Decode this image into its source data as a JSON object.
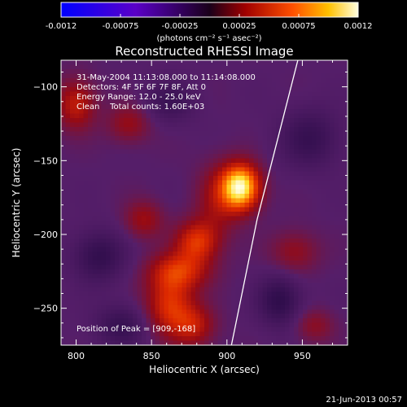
{
  "chart_data": {
    "type": "heatmap",
    "title": "Reconstructed RHESSI Image",
    "xlabel": "Heliocentric X (arcsec)",
    "ylabel": "Heliocentric Y (arcsec)",
    "xlim": [
      790,
      980
    ],
    "ylim": [
      -275,
      -82
    ],
    "x_ticks": [
      800,
      850,
      900,
      950
    ],
    "y_ticks": [
      -100,
      -150,
      -200,
      -250
    ],
    "colorbar": {
      "range": [
        -0.0012,
        0.0012
      ],
      "ticks": [
        "-0.0012",
        "-0.00075",
        "-0.00025",
        "0.00025",
        "0.00075",
        "0.0012"
      ],
      "unit_label": "(photons cm⁻² s⁻¹ asec⁻²)"
    },
    "info_lines": [
      "31-May-2004 11:13:08.000 to 11:14:08.000",
      "Detectors: 4F 5F 6F 7F 8F, Att 0",
      "Energy Range: 12.0 - 25.0 keV",
      "Clean    Total counts: 1.60E+03"
    ],
    "peak_label": "Position of Peak = [909,-168]",
    "peak": {
      "x": 909,
      "y": -168
    },
    "sources": [
      {
        "x": 909,
        "y": -168,
        "sx": 9,
        "sy": 11,
        "amp": 1.15
      },
      {
        "x": 893,
        "y": -178,
        "sx": 10,
        "sy": 18,
        "amp": 0.28
      },
      {
        "x": 880,
        "y": -205,
        "sx": 10,
        "sy": 10,
        "amp": 0.55
      },
      {
        "x": 868,
        "y": -225,
        "sx": 14,
        "sy": 9,
        "amp": 0.5
      },
      {
        "x": 862,
        "y": -248,
        "sx": 11,
        "sy": 14,
        "amp": 0.55
      },
      {
        "x": 878,
        "y": -262,
        "sx": 10,
        "sy": 10,
        "amp": 0.4
      },
      {
        "x": 845,
        "y": -190,
        "sx": 9,
        "sy": 9,
        "amp": 0.32
      },
      {
        "x": 800,
        "y": -112,
        "sx": 9,
        "sy": 12,
        "amp": 0.45
      },
      {
        "x": 835,
        "y": -125,
        "sx": 10,
        "sy": 9,
        "amp": 0.3
      },
      {
        "x": 945,
        "y": -212,
        "sx": 11,
        "sy": 10,
        "amp": 0.28
      },
      {
        "x": 958,
        "y": -262,
        "sx": 9,
        "sy": 8,
        "amp": 0.25
      },
      {
        "x": 815,
        "y": -215,
        "sx": 12,
        "sy": 12,
        "amp": -0.35
      },
      {
        "x": 935,
        "y": -245,
        "sx": 10,
        "sy": 12,
        "amp": -0.38
      },
      {
        "x": 955,
        "y": -135,
        "sx": 14,
        "sy": 14,
        "amp": -0.3
      },
      {
        "x": 830,
        "y": -262,
        "sx": 12,
        "sy": 10,
        "amp": -0.3
      },
      {
        "x": 862,
        "y": -110,
        "sx": 12,
        "sy": 10,
        "amp": -0.25
      }
    ],
    "limb": [
      [
        947,
        -82
      ],
      [
        940,
        -110
      ],
      [
        930,
        -150
      ],
      [
        920,
        -190
      ],
      [
        912,
        -230
      ],
      [
        906,
        -260
      ],
      [
        903,
        -275
      ]
    ],
    "limb_color": "#ffffff",
    "background_color": "#000000"
  },
  "footer": {
    "timestamp": "21-Jun-2013 00:57"
  }
}
